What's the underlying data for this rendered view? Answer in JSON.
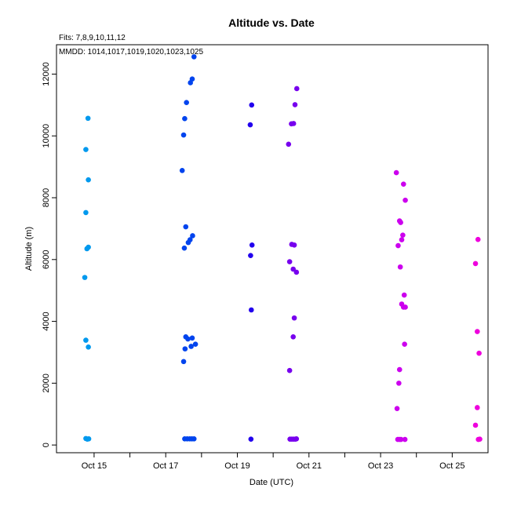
{
  "chart_data": {
    "type": "scatter",
    "title": "Altitude  vs. Date",
    "subtitle_fits": "Fits: 7,8,9,10,11,12",
    "subtitle_mmdd": "MMDD: 1014,1017,1019,1020,1023,1025",
    "xlabel": "Date (UTC)",
    "ylabel": "Altitude (m)",
    "x_unit": "day of October (UTC)",
    "xlim": [
      13.95,
      26.0
    ],
    "ylim": [
      -250,
      12950
    ],
    "x_ticks": [
      {
        "value": 15,
        "label": "Oct 15"
      },
      {
        "value": 17,
        "label": "Oct 17"
      },
      {
        "value": 19,
        "label": "Oct 19"
      },
      {
        "value": 21,
        "label": "Oct 21"
      },
      {
        "value": 23,
        "label": "Oct 23"
      },
      {
        "value": 25,
        "label": "Oct 25"
      }
    ],
    "x_minor_ticks": [
      16,
      18,
      20,
      22,
      24
    ],
    "y_ticks": [
      0,
      2000,
      4000,
      6000,
      8000,
      10000,
      12000
    ],
    "grid": false,
    "legend": "none",
    "series": [
      {
        "color": "#0099ee",
        "points": [
          [
            14.83,
            10570
          ],
          [
            14.77,
            9560
          ],
          [
            14.84,
            8580
          ],
          [
            14.77,
            7520
          ],
          [
            14.84,
            6400
          ],
          [
            14.8,
            6350
          ],
          [
            14.74,
            5420
          ],
          [
            14.77,
            3390
          ],
          [
            14.84,
            3170
          ],
          [
            14.77,
            210
          ],
          [
            14.81,
            190
          ],
          [
            14.85,
            200
          ]
        ]
      },
      {
        "color": "#0044ee",
        "points": [
          [
            17.79,
            12560
          ],
          [
            17.74,
            11840
          ],
          [
            17.69,
            11720
          ],
          [
            17.58,
            11080
          ],
          [
            17.53,
            10560
          ],
          [
            17.5,
            10030
          ],
          [
            17.46,
            8880
          ],
          [
            17.56,
            7060
          ],
          [
            17.75,
            6770
          ],
          [
            17.68,
            6640
          ],
          [
            17.63,
            6550
          ],
          [
            17.52,
            6370
          ],
          [
            17.56,
            3500
          ],
          [
            17.62,
            3430
          ],
          [
            17.74,
            3460
          ],
          [
            17.83,
            3260
          ],
          [
            17.71,
            3190
          ],
          [
            17.54,
            3110
          ],
          [
            17.5,
            2700
          ],
          [
            17.53,
            200
          ],
          [
            17.6,
            200
          ],
          [
            17.67,
            200
          ],
          [
            17.73,
            200
          ],
          [
            17.79,
            200
          ]
        ]
      },
      {
        "color": "#2200ee",
        "points": [
          [
            19.4,
            11000
          ],
          [
            19.36,
            10360
          ],
          [
            19.41,
            6470
          ],
          [
            19.37,
            6130
          ],
          [
            19.39,
            4370
          ],
          [
            19.38,
            190
          ]
        ]
      },
      {
        "color": "#7700ee",
        "points": [
          [
            20.66,
            11530
          ],
          [
            20.61,
            11010
          ],
          [
            20.51,
            10390
          ],
          [
            20.57,
            10400
          ],
          [
            20.43,
            9730
          ],
          [
            20.52,
            6490
          ],
          [
            20.59,
            6470
          ],
          [
            20.46,
            5930
          ],
          [
            20.56,
            5690
          ],
          [
            20.65,
            5590
          ],
          [
            20.59,
            4110
          ],
          [
            20.56,
            3500
          ],
          [
            20.46,
            2410
          ],
          [
            20.47,
            190
          ],
          [
            20.52,
            190
          ],
          [
            20.57,
            190
          ],
          [
            20.62,
            190
          ],
          [
            20.65,
            200
          ]
        ]
      },
      {
        "color": "#cc00ee",
        "points": [
          [
            23.44,
            8810
          ],
          [
            23.64,
            8440
          ],
          [
            23.69,
            7920
          ],
          [
            23.53,
            7250
          ],
          [
            23.56,
            7200
          ],
          [
            23.62,
            6790
          ],
          [
            23.59,
            6640
          ],
          [
            23.49,
            6450
          ],
          [
            23.55,
            5760
          ],
          [
            23.66,
            4850
          ],
          [
            23.59,
            4560
          ],
          [
            23.64,
            4460
          ],
          [
            23.69,
            4460
          ],
          [
            23.67,
            3260
          ],
          [
            23.53,
            2440
          ],
          [
            23.51,
            2000
          ],
          [
            23.46,
            1180
          ],
          [
            23.48,
            180
          ],
          [
            23.53,
            180
          ],
          [
            23.57,
            180
          ],
          [
            23.68,
            180
          ]
        ]
      },
      {
        "color": "#ee00dd",
        "points": [
          [
            25.72,
            6650
          ],
          [
            25.65,
            5870
          ],
          [
            25.7,
            3670
          ],
          [
            25.75,
            2970
          ],
          [
            25.7,
            1210
          ],
          [
            25.65,
            640
          ],
          [
            25.73,
            180
          ],
          [
            25.77,
            190
          ]
        ]
      }
    ]
  }
}
